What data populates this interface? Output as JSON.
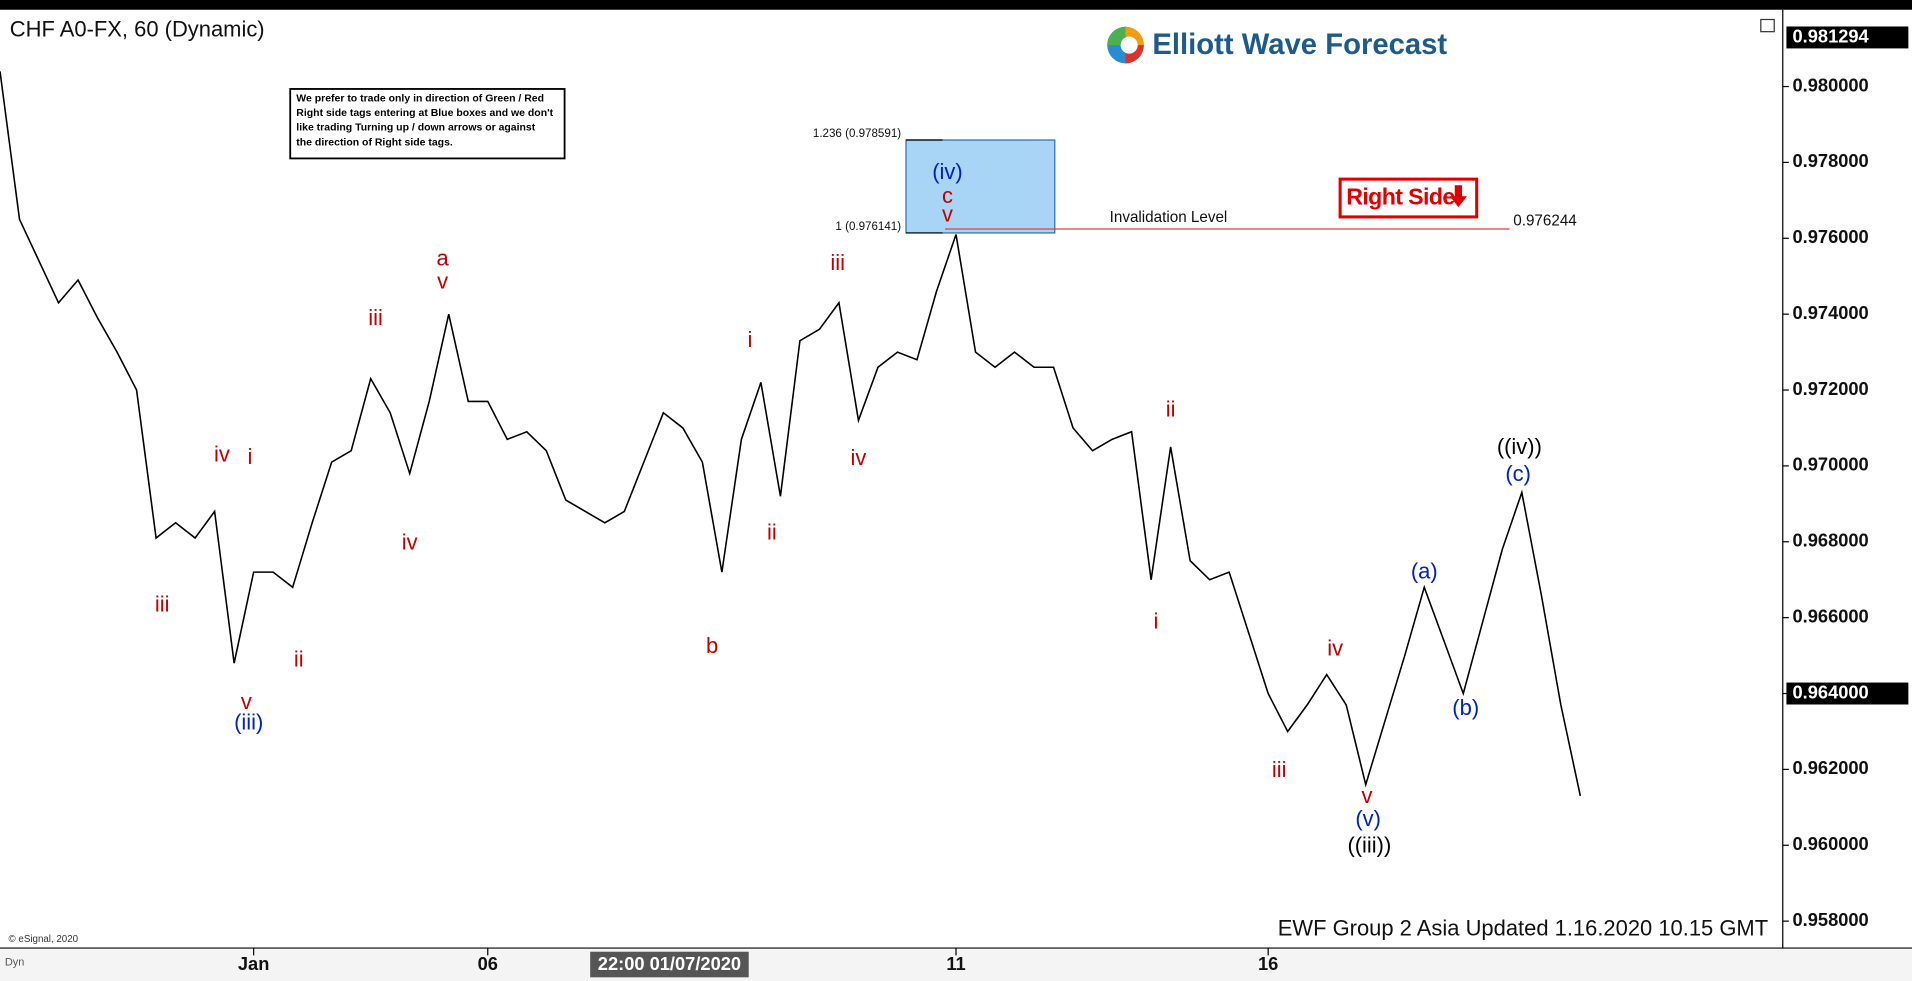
{
  "chart_data": {
    "type": "line",
    "title": "CHF A0-FX, 60 (Dynamic)",
    "logo": "Elliott Wave Forecast",
    "note": [
      "We prefer to trade only in direction of Green / Red",
      "Right side tags entering at Blue boxes and we don't",
      "like trading Turning up / down arrows or against",
      "the direction of Right side tags."
    ],
    "right_side_tag": "Right Side",
    "footer": "EWF Group 2 Asia  Updated 1.16.2020 10.15 GMT",
    "copyright": "© eSignal, 2020",
    "corner_label": "Dyn",
    "cursor_label": "22:00 01/07/2020",
    "categories": [
      null,
      null,
      null,
      null,
      null,
      null,
      null,
      null,
      null,
      null,
      null,
      null,
      null,
      "Jan",
      null,
      null,
      null,
      null,
      null,
      null,
      null,
      null,
      null,
      null,
      null,
      "06",
      null,
      null,
      null,
      null,
      null,
      null,
      null,
      null,
      null,
      null,
      null,
      null,
      null,
      null,
      null,
      null,
      null,
      null,
      null,
      null,
      null,
      null,
      null,
      "11",
      null,
      null,
      null,
      null,
      null,
      null,
      null,
      null,
      null,
      null,
      null,
      null,
      null,
      null,
      null,
      "16",
      null,
      null,
      null,
      null,
      null,
      null,
      null,
      null,
      null,
      null,
      null,
      null,
      null,
      null,
      null,
      null
    ],
    "series": [
      {
        "color": "#000000",
        "values": [
          0.9804,
          0.9765,
          0.9754,
          0.9743,
          0.9749,
          0.9739,
          0.973,
          0.972,
          0.9681,
          0.9685,
          0.9681,
          0.9688,
          0.9648,
          0.9672,
          0.9672,
          0.9668,
          0.9685,
          0.9701,
          0.9704,
          0.9723,
          0.9714,
          0.9698,
          0.9717,
          0.974,
          0.9717,
          0.9717,
          0.9707,
          0.9709,
          0.9704,
          0.9691,
          0.9688,
          0.9685,
          0.9688,
          0.9701,
          0.9714,
          0.971,
          0.9701,
          0.9672,
          0.9707,
          0.9722,
          0.9692,
          0.9733,
          0.9736,
          0.9743,
          0.9712,
          0.9726,
          0.973,
          0.9728,
          0.9746,
          0.9761,
          0.973,
          0.9726,
          0.973,
          0.9726,
          0.9726,
          0.971,
          0.9704,
          0.9707,
          0.9709,
          0.967,
          0.9705,
          0.9675,
          0.967,
          0.9672,
          0.9656,
          0.964,
          0.963,
          0.9637,
          null,
          null,
          null,
          null,
          null,
          null,
          null,
          null,
          null,
          null,
          null,
          null,
          null,
          null
        ]
      },
      {
        "color": "#000000",
        "values": [
          null,
          null,
          null,
          null,
          null,
          null,
          null,
          null,
          null,
          null,
          null,
          null,
          null,
          null,
          null,
          null,
          null,
          null,
          null,
          null,
          null,
          null,
          null,
          null,
          null,
          null,
          null,
          null,
          null,
          null,
          null,
          null,
          null,
          null,
          null,
          null,
          null,
          null,
          null,
          null,
          null,
          null,
          null,
          null,
          null,
          null,
          null,
          null,
          null,
          null,
          null,
          null,
          null,
          null,
          null,
          null,
          null,
          null,
          null,
          null,
          null,
          null,
          null,
          null,
          null,
          null,
          null,
          0.9637,
          0.9645,
          0.9637,
          0.9616,
          0.9633,
          0.965,
          0.9668,
          0.9654,
          0.964,
          0.9659,
          0.9678,
          0.9693,
          0.9666,
          0.9637,
          0.9613
        ]
      }
    ],
    "ylim": [
      0.95729,
      0.98196
    ],
    "yticks": [
      {
        "value": 0.958,
        "label": "0.958000"
      },
      {
        "value": 0.96,
        "label": "0.960000"
      },
      {
        "value": 0.962,
        "label": "0.962000"
      },
      {
        "value": 0.964,
        "label": "0.964000"
      },
      {
        "value": 0.966,
        "label": "0.966000"
      },
      {
        "value": 0.968,
        "label": "0.968000"
      },
      {
        "value": 0.97,
        "label": "0.970000"
      },
      {
        "value": 0.972,
        "label": "0.972000"
      },
      {
        "value": 0.974,
        "label": "0.974000"
      },
      {
        "value": 0.976,
        "label": "0.976000"
      },
      {
        "value": 0.978,
        "label": "0.978000"
      },
      {
        "value": 0.98,
        "label": "0.980000"
      }
    ],
    "price_markers": [
      {
        "value": 0.981294,
        "label": "0.981294"
      },
      {
        "value": 0.964,
        "label": "0.964000"
      }
    ],
    "fib_levels": [
      {
        "value": 0.978591,
        "label": "1.236 (0.978591)"
      },
      {
        "value": 0.976141,
        "label": "1 (0.976141)"
      }
    ],
    "invalidation": {
      "value": 0.976244,
      "label": "Invalidation Level",
      "value_label": "0.976244",
      "color": "#e04040"
    },
    "box_color": "#a8d4f5",
    "annotations": [
      {
        "text": "iii",
        "color": "#c00000"
      },
      {
        "text": "iv",
        "color": "#c00000"
      },
      {
        "text": "i",
        "color": "#c00000"
      },
      {
        "text": "v",
        "color": "#c00000"
      },
      {
        "text": "(iii)",
        "color": "#0020c0"
      },
      {
        "text": "ii",
        "color": "#c00000"
      },
      {
        "text": "iii",
        "color": "#c00000"
      },
      {
        "text": "iv",
        "color": "#c00000"
      },
      {
        "text": "a",
        "color": "#c00000"
      },
      {
        "text": "v",
        "color": "#c00000"
      },
      {
        "text": "b",
        "color": "#c00000"
      },
      {
        "text": "i",
        "color": "#c00000"
      },
      {
        "text": "ii",
        "color": "#c00000"
      },
      {
        "text": "iii",
        "color": "#c00000"
      },
      {
        "text": "iv",
        "color": "#c00000"
      },
      {
        "text": "(iv)",
        "color": "#0020c0"
      },
      {
        "text": "c",
        "color": "#c00000"
      },
      {
        "text": "v",
        "color": "#c00000"
      },
      {
        "text": "ii",
        "color": "#c00000"
      },
      {
        "text": "i",
        "color": "#c00000"
      },
      {
        "text": "iii",
        "color": "#c00000"
      },
      {
        "text": "iv",
        "color": "#c00000"
      },
      {
        "text": "v",
        "color": "#c00000"
      },
      {
        "text": "(v)",
        "color": "#0020c0"
      },
      {
        "text": "((iii))",
        "color": "#000000"
      },
      {
        "text": "(a)",
        "color": "#0020c0"
      },
      {
        "text": "(b)",
        "color": "#0020c0"
      },
      {
        "text": "(c)",
        "color": "#0020c0"
      },
      {
        "text": "((iv))",
        "color": "#000000"
      }
    ]
  }
}
